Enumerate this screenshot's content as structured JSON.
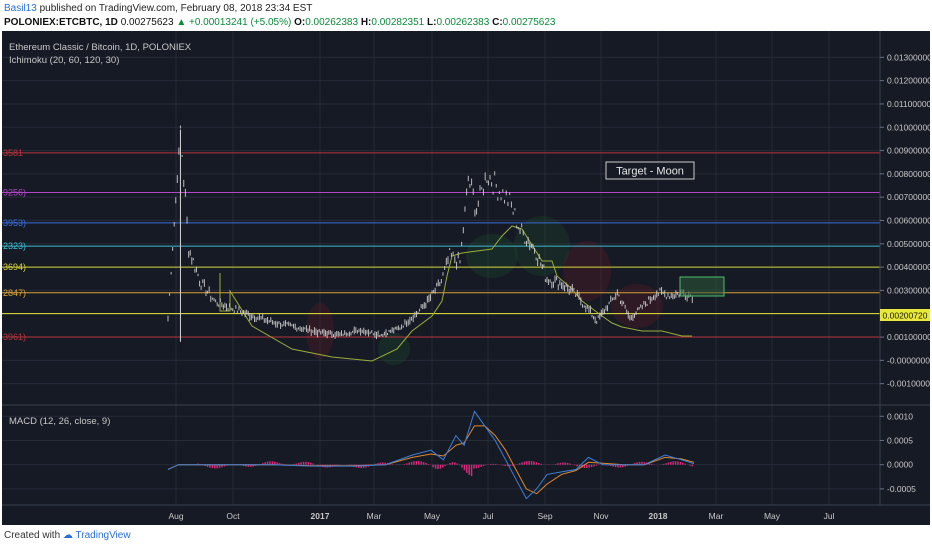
{
  "header": {
    "user": "Basil13",
    "published": "published on TradingView.com, February 08, 2018 23:34 EST",
    "symbol": "POLONIEX:ETCBTC, 1D",
    "price": "0.00275623",
    "change": "+0.00013241 (+5.05%)",
    "o_label": "O:",
    "o": "0.00262383",
    "h_label": "H:",
    "h": "0.00282351",
    "l_label": "L:",
    "l": "0.00262383",
    "c_label": "C:",
    "c": "0.00275623"
  },
  "chart": {
    "title": "Ethereum Classic / Bitcoin, 1D, POLONIEX",
    "indicator": "Ichimoku (20, 60, 120, 30)",
    "macd_label": "MACD (12, 26, close, 9)",
    "annotation": "Target - Moon",
    "price_tag": "0.00200720"
  },
  "colors": {
    "background": "#161a25",
    "grid": "#262b38",
    "candle": "#d8d8d8",
    "ichimoku": "#9aad3a",
    "macd": "#3d7fd8",
    "signal": "#e0892f",
    "histogram": "#d6297a"
  },
  "chart_data": [
    {
      "type": "line",
      "title": "Ethereum Classic / Bitcoin, 1D, POLONIEX",
      "x_ticks": [
        "Aug",
        "Oct",
        "2017",
        "Mar",
        "May",
        "Jul",
        "Sep",
        "Nov",
        "2018",
        "Mar",
        "May",
        "Jul"
      ],
      "y_ticks": [
        "0.01300000",
        "0.01200000",
        "0.01100000",
        "0.01000000",
        "0.00900000",
        "0.00800000",
        "0.00700000",
        "0.00600000",
        "0.00500000",
        "0.00400000",
        "0.00300000",
        "0.00200000",
        "0.00100000",
        "-0.00000000",
        "-0.00100000"
      ],
      "ylim": [
        -0.0014,
        0.0137
      ],
      "fib_levels": [
        {
          "value": 0.0089,
          "label": "3581",
          "color": "#b8333a"
        },
        {
          "value": 0.0072,
          "label": "9256)",
          "color": "#b345c8"
        },
        {
          "value": 0.0059,
          "label": "3953)",
          "color": "#3a6ed8"
        },
        {
          "value": 0.0049,
          "label": "2323)",
          "color": "#3bbccd"
        },
        {
          "value": 0.004,
          "label": "3694)",
          "color": "#d6d63a"
        },
        {
          "value": 0.0029,
          "label": "2847)",
          "color": "#d9a23a"
        },
        {
          "value": 0.0020072,
          "label": "",
          "color": "#e8e83a"
        },
        {
          "value": 0.001,
          "label": "3961)",
          "color": "#b8333a"
        }
      ],
      "series": [
        {
          "points": [
            [
              0.0,
              1.8
            ],
            [
              0.6,
              9.9
            ],
            [
              1.0,
              4.8
            ],
            [
              1.6,
              3.3
            ],
            [
              2.3,
              2.5
            ],
            [
              3.2,
              2.2
            ],
            [
              4.1,
              1.9
            ],
            [
              5.2,
              1.6
            ],
            [
              6.3,
              1.4
            ],
            [
              7.3,
              1.2
            ],
            [
              8.3,
              1.1
            ],
            [
              9.3,
              1.3
            ],
            [
              10.3,
              1.1
            ],
            [
              11.2,
              1.4
            ],
            [
              12.0,
              2.0
            ],
            [
              12.6,
              2.6
            ],
            [
              13.2,
              3.4
            ],
            [
              13.6,
              4.5
            ],
            [
              14.1,
              4.2
            ],
            [
              14.5,
              7.8
            ],
            [
              14.9,
              6.5
            ],
            [
              15.4,
              8.0
            ],
            [
              16.0,
              7.3
            ],
            [
              16.5,
              6.8
            ],
            [
              17.0,
              5.6
            ],
            [
              17.7,
              4.8
            ],
            [
              18.3,
              3.5
            ],
            [
              19.0,
              3.3
            ],
            [
              19.6,
              2.9
            ],
            [
              20.1,
              2.4
            ],
            [
              20.7,
              1.7
            ],
            [
              21.3,
              2.4
            ],
            [
              21.7,
              2.9
            ],
            [
              22.3,
              1.8
            ],
            [
              22.9,
              2.3
            ],
            [
              23.6,
              2.9
            ],
            [
              24.3,
              2.8
            ],
            [
              24.9,
              2.9
            ],
            [
              25.4,
              2.75
            ]
          ]
        }
      ]
    },
    {
      "type": "line",
      "title": "MACD (12, 26, close, 9)",
      "y_ticks": [
        "0.0010",
        "0.0005",
        "0.0000",
        "-0.0005"
      ],
      "ylim": [
        -0.00075,
        0.00115
      ],
      "series": [
        {
          "points": [
            [
              0.0,
              -0.0001
            ],
            [
              0.5,
              0.0
            ],
            [
              1.5,
              0.0
            ],
            [
              3.0,
              0.0
            ],
            [
              5.0,
              0.0
            ],
            [
              7.0,
              -3e-05
            ],
            [
              9.0,
              -3e-05
            ],
            [
              10.5,
              0.0
            ],
            [
              11.8,
              0.0002
            ],
            [
              12.7,
              0.0003
            ],
            [
              13.3,
              0.0001
            ],
            [
              13.9,
              0.0006
            ],
            [
              14.3,
              0.0004
            ],
            [
              14.8,
              0.0011
            ],
            [
              15.3,
              0.0008
            ],
            [
              15.8,
              0.0005
            ],
            [
              16.3,
              0.0001
            ],
            [
              16.8,
              -0.0003
            ],
            [
              17.3,
              -0.0007
            ],
            [
              17.8,
              -0.0005
            ],
            [
              18.3,
              -0.0002
            ],
            [
              19.0,
              -0.00015
            ],
            [
              19.7,
              -0.0001
            ],
            [
              20.3,
              0.00015
            ],
            [
              21.0,
              0.0
            ],
            [
              22.0,
              0.0
            ],
            [
              23.0,
              0.0
            ],
            [
              24.0,
              0.0002
            ],
            [
              24.8,
              0.0001
            ],
            [
              25.4,
              2e-05
            ]
          ]
        },
        {
          "points": [
            [
              0.0,
              -0.0001
            ],
            [
              0.5,
              0.0
            ],
            [
              1.5,
              0.0
            ],
            [
              3.0,
              0.0
            ],
            [
              5.0,
              0.0
            ],
            [
              7.0,
              -2e-05
            ],
            [
              9.0,
              -2e-05
            ],
            [
              10.5,
              0.0
            ],
            [
              11.8,
              0.00015
            ],
            [
              12.7,
              0.00022
            ],
            [
              13.3,
              0.00018
            ],
            [
              13.9,
              0.0004
            ],
            [
              14.3,
              0.00045
            ],
            [
              14.8,
              0.0008
            ],
            [
              15.3,
              0.0008
            ],
            [
              15.8,
              0.0006
            ],
            [
              16.3,
              0.0003
            ],
            [
              16.8,
              -0.0001
            ],
            [
              17.3,
              -0.0005
            ],
            [
              17.8,
              -0.0006
            ],
            [
              18.3,
              -0.0004
            ],
            [
              19.0,
              -0.0002
            ],
            [
              19.7,
              -0.00012
            ],
            [
              20.3,
              5e-05
            ],
            [
              21.0,
              3e-05
            ],
            [
              22.0,
              0.0
            ],
            [
              23.0,
              0.0
            ],
            [
              24.0,
              0.00015
            ],
            [
              24.8,
              0.00012
            ],
            [
              25.4,
              5e-05
            ]
          ]
        }
      ]
    }
  ]
}
